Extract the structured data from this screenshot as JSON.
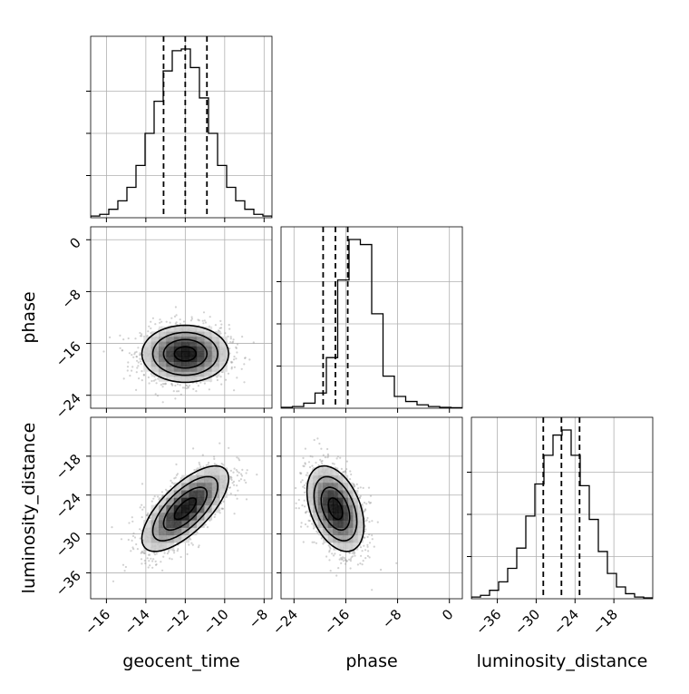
{
  "chart_data": {
    "type": "corner",
    "parameters": [
      "geocent_time",
      "phase",
      "luminosity_distance"
    ],
    "axis_labels": {
      "x": [
        "geocent_time",
        "phase",
        "luminosity_distance"
      ],
      "y": [
        "phase",
        "luminosity_distance"
      ]
    },
    "ranges": {
      "geocent_time": [
        -16.8,
        -7.6
      ],
      "phase": [
        -26.0,
        2.0
      ],
      "luminosity_distance": [
        -40.0,
        -12.0
      ]
    },
    "ticks": {
      "geocent_time": [
        -16,
        -14,
        -12,
        -10,
        -8
      ],
      "phase": [
        -24,
        -16,
        -8,
        0
      ],
      "luminosity_distance": [
        -36,
        -30,
        -24,
        -18
      ]
    },
    "tick_labels": {
      "geocent_time": [
        "−16",
        "−14",
        "−12",
        "−10",
        "−8"
      ],
      "phase": [
        "−24",
        "−16",
        "−8",
        "0"
      ],
      "phase_y": [
        "−24",
        "−16",
        "−8",
        "0"
      ],
      "luminosity_distance_x": [
        "−36",
        "−30",
        "−24",
        "−18"
      ],
      "luminosity_distance_y": [
        "−36",
        "−30",
        "−24",
        "−18"
      ]
    },
    "quantiles": {
      "geocent_time": [
        -13.1,
        -12.0,
        -10.9
      ],
      "phase": [
        -19.5,
        -17.6,
        -15.7
      ],
      "luminosity_distance": [
        -28.9,
        -26.1,
        -23.3
      ]
    },
    "histograms": {
      "geocent_time": [
        0.01,
        0.02,
        0.05,
        0.1,
        0.18,
        0.31,
        0.5,
        0.69,
        0.87,
        0.99,
        1.0,
        0.89,
        0.71,
        0.5,
        0.31,
        0.18,
        0.1,
        0.05,
        0.02,
        0.01
      ],
      "phase": [
        0.005,
        0.01,
        0.03,
        0.09,
        0.3,
        0.76,
        1.0,
        0.97,
        0.56,
        0.19,
        0.07,
        0.04,
        0.02,
        0.01,
        0.005,
        0.003
      ],
      "luminosity_distance": [
        0.01,
        0.02,
        0.05,
        0.1,
        0.18,
        0.3,
        0.49,
        0.68,
        0.85,
        0.97,
        1.0,
        0.85,
        0.67,
        0.47,
        0.28,
        0.15,
        0.07,
        0.03,
        0.01,
        0.005
      ]
    },
    "pairs": [
      {
        "x": "geocent_time",
        "y": "phase",
        "x_mean": -12.0,
        "y_mean": -17.6,
        "x_sd": 1.1,
        "y_sd": 2.2,
        "corr": 0.0
      },
      {
        "x": "geocent_time",
        "y": "luminosity_distance",
        "x_mean": -12.0,
        "y_mean": -26.1,
        "x_sd": 1.1,
        "y_sd": 3.3,
        "corr": 0.7
      },
      {
        "x": "phase",
        "y": "luminosity_distance",
        "x_mean": -17.6,
        "y_mean": -26.1,
        "x_sd": 2.2,
        "y_sd": 3.3,
        "corr": -0.4
      }
    ],
    "grid": true,
    "line_color": "#000000",
    "point_color": "#9a9a9a"
  }
}
